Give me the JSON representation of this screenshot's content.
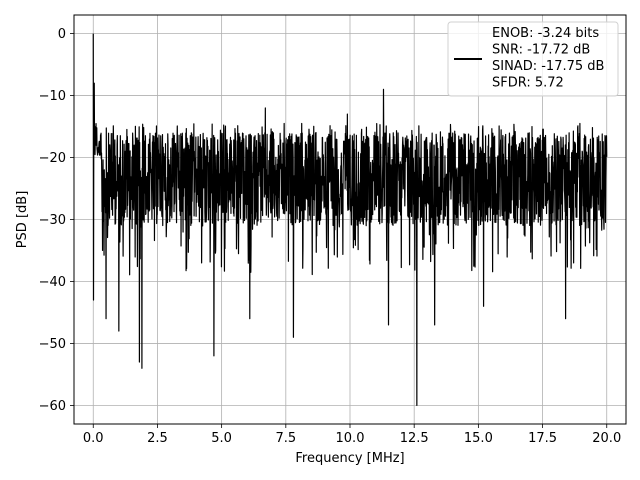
{
  "chart_data": {
    "type": "line",
    "xlabel": "Frequency [MHz]",
    "ylabel": "PSD [dB]",
    "xlim": [
      -0.75,
      20.75
    ],
    "ylim": [
      -63,
      3
    ],
    "xticks": [
      0.0,
      2.5,
      5.0,
      7.5,
      10.0,
      12.5,
      15.0,
      17.5,
      20.0
    ],
    "xtick_labels": [
      "0.0",
      "2.5",
      "5.0",
      "7.5",
      "10.0",
      "12.5",
      "15.0",
      "17.5",
      "20.0"
    ],
    "yticks": [
      0,
      -10,
      -20,
      -30,
      -40,
      -50,
      -60
    ],
    "ytick_labels": [
      "0",
      "−10",
      "−20",
      "−30",
      "−40",
      "−50",
      "−60"
    ],
    "grid": true,
    "legend_position": "top-right",
    "line_color": "#000000",
    "series": [
      {
        "name": "ENOB: -3.24 bits\nSNR: -17.72 dB\nSINAD: -17.75 dB\nSFDR: 5.72",
        "legend_lines": [
          "ENOB: -3.24 bits",
          "SNR: -17.72 dB",
          "SINAD: -17.75 dB",
          "SFDR: 5.72"
        ],
        "x_range": [
          0,
          20
        ],
        "n_points": 2048,
        "noise_floor_mean": -22,
        "band_top_typical": -15,
        "band_bottom_typical": -30,
        "peaks": [
          {
            "x": 0.0,
            "y": 0
          },
          {
            "x": 0.04,
            "y": -8
          },
          {
            "x": 6.7,
            "y": -12
          },
          {
            "x": 9.9,
            "y": -13
          },
          {
            "x": 11.3,
            "y": -9
          }
        ],
        "notches": [
          {
            "x": 0.0,
            "y": -43
          },
          {
            "x": 0.5,
            "y": -46
          },
          {
            "x": 1.0,
            "y": -48
          },
          {
            "x": 1.8,
            "y": -53
          },
          {
            "x": 1.9,
            "y": -54
          },
          {
            "x": 4.7,
            "y": -52
          },
          {
            "x": 6.1,
            "y": -46
          },
          {
            "x": 7.8,
            "y": -49
          },
          {
            "x": 11.5,
            "y": -47
          },
          {
            "x": 12.6,
            "y": -60
          },
          {
            "x": 13.3,
            "y": -47
          },
          {
            "x": 15.2,
            "y": -44
          },
          {
            "x": 18.4,
            "y": -46
          }
        ]
      }
    ]
  }
}
